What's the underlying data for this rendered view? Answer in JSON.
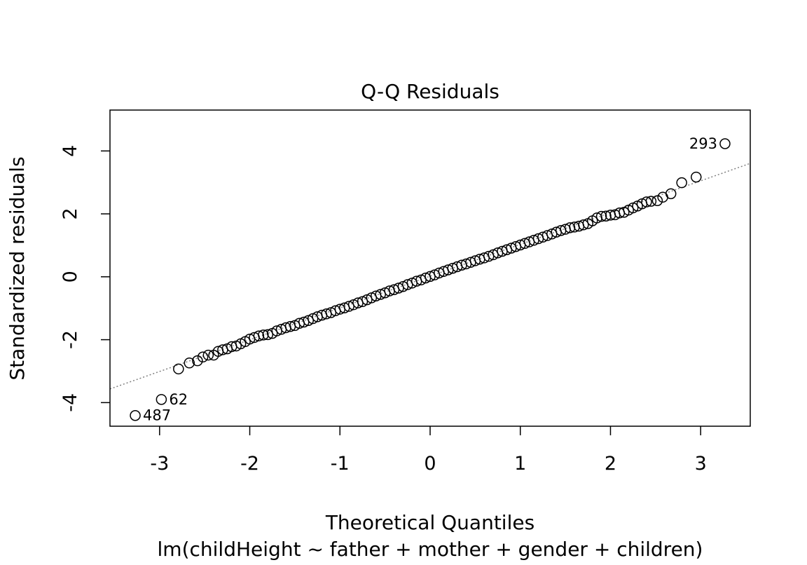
{
  "chart_data": {
    "type": "scatter",
    "title": "Q-Q Residuals",
    "xlabel": "Theoretical Quantiles",
    "ylabel": "Standardized residuals",
    "subtitle": "lm(childHeight ~ father + mother + gender + children)",
    "xlim": [
      -3.55,
      3.55
    ],
    "ylim": [
      -4.75,
      5.3
    ],
    "x_ticks": [
      -3,
      -2,
      -1,
      0,
      1,
      2,
      3
    ],
    "x_tick_labels": [
      "-3",
      "-2",
      "-1",
      "0",
      "1",
      "2",
      "3"
    ],
    "y_ticks": [
      -4,
      -2,
      0,
      2,
      4
    ],
    "y_tick_labels": [
      "-4",
      "-2",
      "0",
      "2",
      "4"
    ],
    "grid": false,
    "reference_line": {
      "slope": 1.01,
      "intercept": 0.02,
      "style": "dotted",
      "color": "#808080"
    },
    "n_points": 934,
    "points": [
      {
        "x": -3.27,
        "y": -4.41
      },
      {
        "x": -2.98,
        "y": -3.9
      },
      {
        "x": -2.79,
        "y": -2.93
      },
      {
        "x": -2.67,
        "y": -2.74
      },
      {
        "x": -2.58,
        "y": -2.67
      },
      {
        "x": -2.52,
        "y": -2.55
      },
      {
        "x": -2.46,
        "y": -2.49
      },
      {
        "x": -2.4,
        "y": -2.49
      },
      {
        "x": -2.35,
        "y": -2.37
      },
      {
        "x": -2.3,
        "y": -2.32
      },
      {
        "x": -2.25,
        "y": -2.29
      },
      {
        "x": -2.2,
        "y": -2.22
      },
      {
        "x": -2.15,
        "y": -2.2
      },
      {
        "x": -2.1,
        "y": -2.13
      },
      {
        "x": -2.05,
        "y": -2.06
      },
      {
        "x": -2.0,
        "y": -1.98
      },
      {
        "x": -1.95,
        "y": -1.93
      },
      {
        "x": -1.9,
        "y": -1.88
      },
      {
        "x": -1.85,
        "y": -1.85
      },
      {
        "x": -1.8,
        "y": -1.84
      },
      {
        "x": -1.75,
        "y": -1.8
      },
      {
        "x": -1.7,
        "y": -1.72
      },
      {
        "x": -1.65,
        "y": -1.67
      },
      {
        "x": -1.6,
        "y": -1.62
      },
      {
        "x": -1.55,
        "y": -1.58
      },
      {
        "x": -1.5,
        "y": -1.55
      },
      {
        "x": -1.45,
        "y": -1.48
      },
      {
        "x": -1.4,
        "y": -1.44
      },
      {
        "x": -1.35,
        "y": -1.39
      },
      {
        "x": -1.3,
        "y": -1.33
      },
      {
        "x": -1.25,
        "y": -1.27
      },
      {
        "x": -1.2,
        "y": -1.22
      },
      {
        "x": -1.15,
        "y": -1.18
      },
      {
        "x": -1.1,
        "y": -1.14
      },
      {
        "x": -1.05,
        "y": -1.08
      },
      {
        "x": -1.0,
        "y": -1.03
      },
      {
        "x": -0.95,
        "y": -0.99
      },
      {
        "x": -0.9,
        "y": -0.94
      },
      {
        "x": -0.85,
        "y": -0.89
      },
      {
        "x": -0.8,
        "y": -0.83
      },
      {
        "x": -0.75,
        "y": -0.79
      },
      {
        "x": -0.7,
        "y": -0.73
      },
      {
        "x": -0.65,
        "y": -0.67
      },
      {
        "x": -0.6,
        "y": -0.61
      },
      {
        "x": -0.55,
        "y": -0.56
      },
      {
        "x": -0.5,
        "y": -0.51
      },
      {
        "x": -0.45,
        "y": -0.45
      },
      {
        "x": -0.4,
        "y": -0.41
      },
      {
        "x": -0.35,
        "y": -0.36
      },
      {
        "x": -0.3,
        "y": -0.31
      },
      {
        "x": -0.25,
        "y": -0.25
      },
      {
        "x": -0.2,
        "y": -0.2
      },
      {
        "x": -0.15,
        "y": -0.14
      },
      {
        "x": -0.1,
        "y": -0.1
      },
      {
        "x": -0.05,
        "y": -0.04
      },
      {
        "x": 0.0,
        "y": 0.01
      },
      {
        "x": 0.05,
        "y": 0.06
      },
      {
        "x": 0.1,
        "y": 0.12
      },
      {
        "x": 0.15,
        "y": 0.17
      },
      {
        "x": 0.2,
        "y": 0.22
      },
      {
        "x": 0.25,
        "y": 0.27
      },
      {
        "x": 0.3,
        "y": 0.32
      },
      {
        "x": 0.35,
        "y": 0.37
      },
      {
        "x": 0.4,
        "y": 0.41
      },
      {
        "x": 0.45,
        "y": 0.46
      },
      {
        "x": 0.5,
        "y": 0.51
      },
      {
        "x": 0.55,
        "y": 0.56
      },
      {
        "x": 0.6,
        "y": 0.6
      },
      {
        "x": 0.65,
        "y": 0.65
      },
      {
        "x": 0.7,
        "y": 0.7
      },
      {
        "x": 0.75,
        "y": 0.76
      },
      {
        "x": 0.8,
        "y": 0.81
      },
      {
        "x": 0.85,
        "y": 0.86
      },
      {
        "x": 0.9,
        "y": 0.91
      },
      {
        "x": 0.95,
        "y": 0.96
      },
      {
        "x": 1.0,
        "y": 1.01
      },
      {
        "x": 1.05,
        "y": 1.06
      },
      {
        "x": 1.1,
        "y": 1.11
      },
      {
        "x": 1.15,
        "y": 1.16
      },
      {
        "x": 1.2,
        "y": 1.21
      },
      {
        "x": 1.25,
        "y": 1.26
      },
      {
        "x": 1.3,
        "y": 1.31
      },
      {
        "x": 1.35,
        "y": 1.36
      },
      {
        "x": 1.4,
        "y": 1.42
      },
      {
        "x": 1.45,
        "y": 1.47
      },
      {
        "x": 1.5,
        "y": 1.51
      },
      {
        "x": 1.55,
        "y": 1.56
      },
      {
        "x": 1.6,
        "y": 1.58
      },
      {
        "x": 1.65,
        "y": 1.61
      },
      {
        "x": 1.7,
        "y": 1.65
      },
      {
        "x": 1.75,
        "y": 1.69
      },
      {
        "x": 1.8,
        "y": 1.78
      },
      {
        "x": 1.85,
        "y": 1.87
      },
      {
        "x": 1.9,
        "y": 1.92
      },
      {
        "x": 1.95,
        "y": 1.93
      },
      {
        "x": 2.0,
        "y": 1.96
      },
      {
        "x": 2.05,
        "y": 1.97
      },
      {
        "x": 2.1,
        "y": 2.03
      },
      {
        "x": 2.15,
        "y": 2.05
      },
      {
        "x": 2.2,
        "y": 2.12
      },
      {
        "x": 2.25,
        "y": 2.19
      },
      {
        "x": 2.3,
        "y": 2.25
      },
      {
        "x": 2.35,
        "y": 2.32
      },
      {
        "x": 2.4,
        "y": 2.38
      },
      {
        "x": 2.45,
        "y": 2.4
      },
      {
        "x": 2.52,
        "y": 2.42
      },
      {
        "x": 2.58,
        "y": 2.53
      },
      {
        "x": 2.67,
        "y": 2.64
      },
      {
        "x": 2.79,
        "y": 2.99
      },
      {
        "x": 2.95,
        "y": 3.17
      },
      {
        "x": 3.27,
        "y": 4.23
      }
    ],
    "annotations": [
      {
        "text": "293",
        "x": 3.27,
        "y": 4.23,
        "side": "left"
      },
      {
        "text": "62",
        "x": -2.98,
        "y": -3.9,
        "side": "right"
      },
      {
        "text": "487",
        "x": -3.27,
        "y": -4.41,
        "side": "right"
      }
    ]
  }
}
